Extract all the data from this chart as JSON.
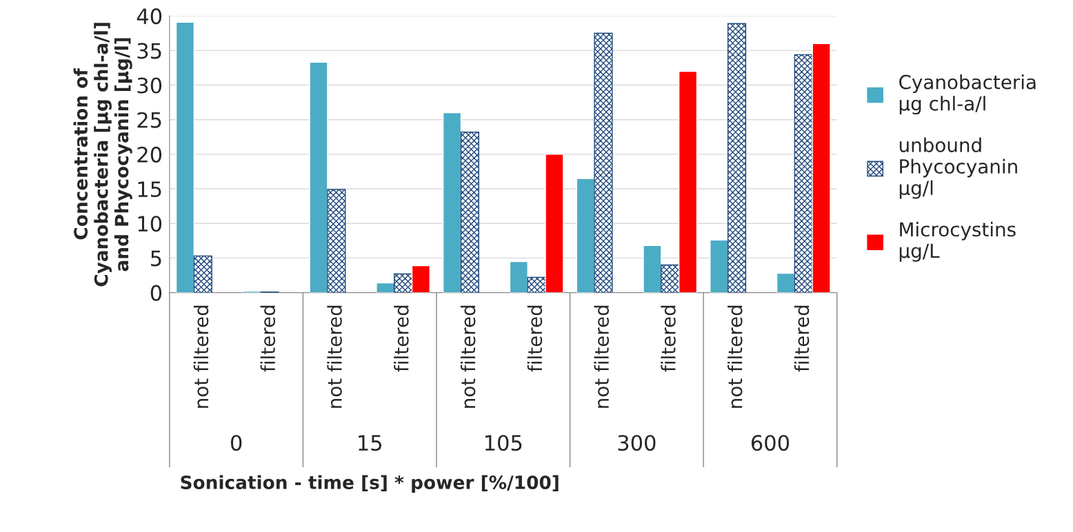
{
  "chart_data": {
    "type": "bar",
    "xlabel": "Sonication - time [s] * power [%/100]",
    "ylabel": "Concentration of\nCyanobacteria [µg chl-a/l]\nand Phycocyanin [µg/l]",
    "categories": [
      "not filtered",
      "filtered",
      "not filtered",
      "filtered",
      "not filtered",
      "filtered",
      "not filtered",
      "filtered",
      "not filtered",
      "filtered"
    ],
    "series": [
      {
        "name": "Cyanobacteria µg chl-a/l",
        "color": "#4bacc6",
        "values": [
          39.1,
          0.2,
          33.3,
          1.4,
          26.0,
          4.5,
          16.5,
          6.8,
          7.6,
          2.8
        ]
      },
      {
        "name": "unbound Phycocyanin µg/l",
        "color": "#1f497d",
        "values": [
          5.3,
          0.1,
          14.9,
          2.7,
          23.2,
          2.2,
          37.5,
          4.0,
          38.9,
          34.4
        ]
      },
      {
        "name": "Microcystins µg/L",
        "color": "#ff0000",
        "values": [
          null,
          null,
          null,
          3.9,
          null,
          20.0,
          null,
          32.0,
          null,
          36.0
        ]
      }
    ],
    "annotations": [
      "0",
      "15",
      "105",
      "300",
      "600"
    ],
    "ylim": [
      0,
      40
    ],
    "yticks": [
      0,
      5,
      10,
      15,
      20,
      25,
      30,
      35,
      40
    ],
    "grid": "y",
    "legend": "right"
  }
}
